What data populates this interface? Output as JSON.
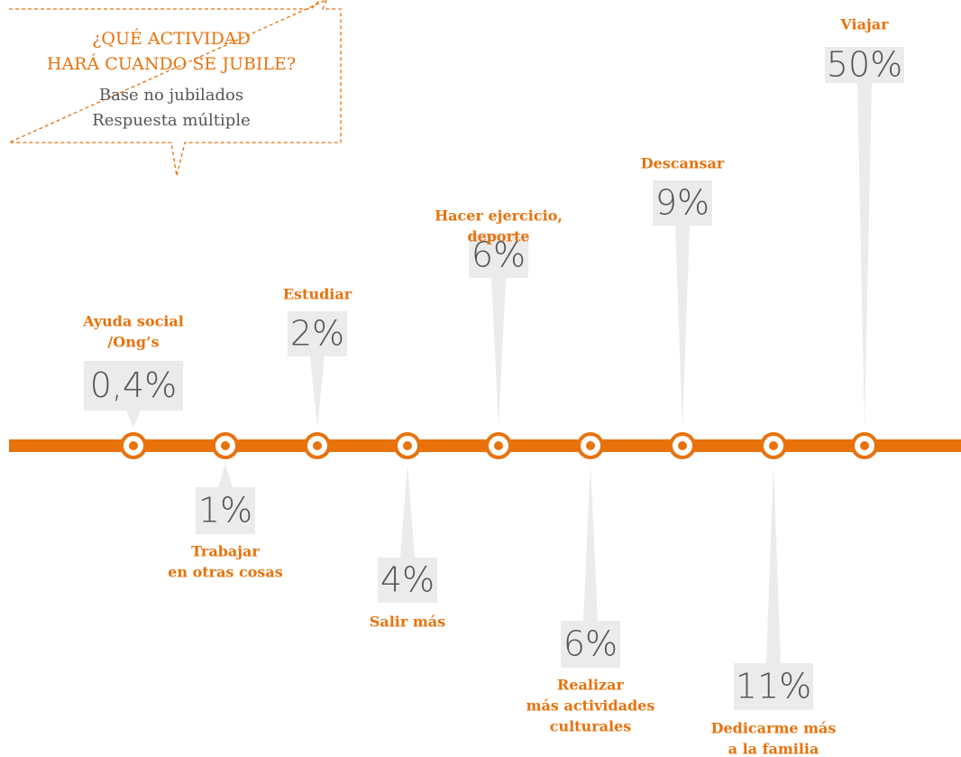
{
  "header": {
    "title": [
      "¿QUÉ ACTIVIDAD",
      "HARÁ CUANDO SE JUBILE?"
    ],
    "subtitle": [
      "Base no jubilados",
      "Respuesta múltiple"
    ]
  },
  "items": [
    {
      "label": [
        "Ayuda social",
        "/Ong’s"
      ],
      "value": "0,4%"
    },
    {
      "label": [
        "Trabajar",
        "en otras cosas"
      ],
      "value": "1%"
    },
    {
      "label": [
        "Estudiar"
      ],
      "value": "2%"
    },
    {
      "label": [
        "Salir más"
      ],
      "value": "4%"
    },
    {
      "label": [
        "Hacer ejercicio,",
        "deporte"
      ],
      "value": "6%"
    },
    {
      "label": [
        "Realizar",
        "más actividades",
        "culturales"
      ],
      "value": "6%"
    },
    {
      "label": [
        "Descansar"
      ],
      "value": "9%"
    },
    {
      "label": [
        "Dedicarme más",
        "a la familia"
      ],
      "value": "11%"
    },
    {
      "label": [
        "Viajar"
      ],
      "value": "50%"
    }
  ]
}
